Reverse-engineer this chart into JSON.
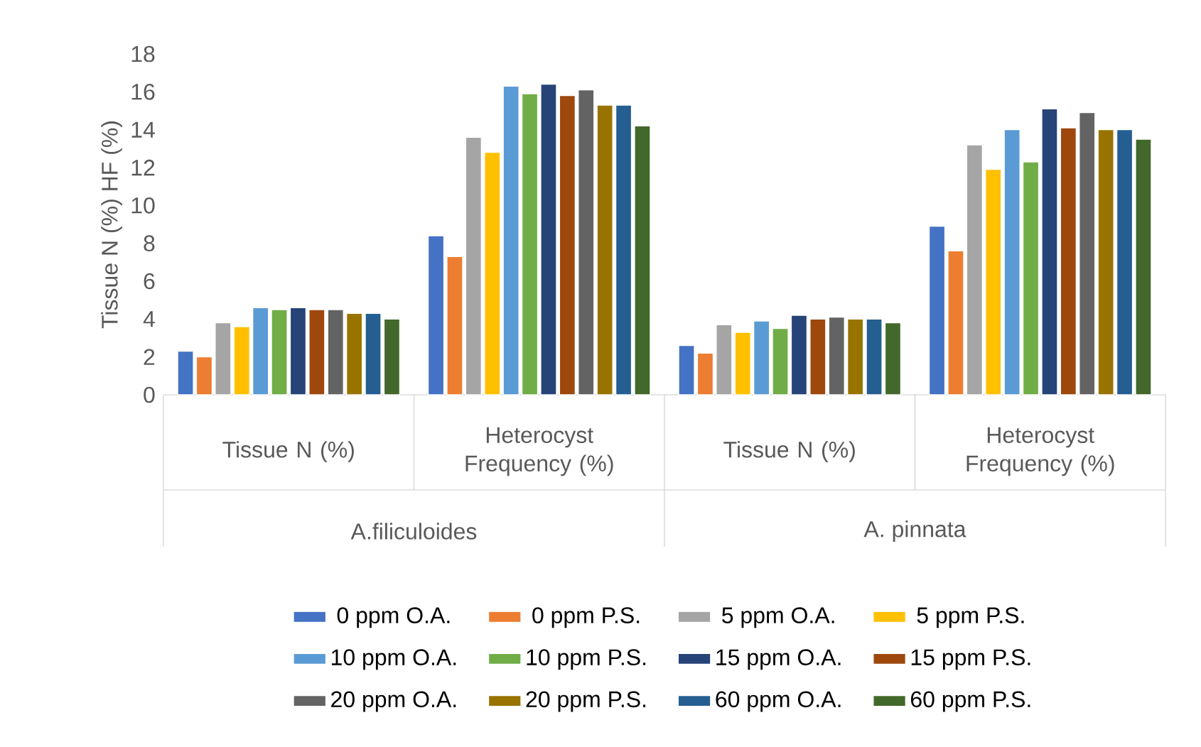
{
  "chart_data": {
    "type": "bar",
    "ylabel": "Tissue N (%) HF (%)",
    "categories": [
      "Tissue N (%)",
      "Heterocyst Frequency (%)",
      "Tissue N (%)",
      "Heterocyst Frequency (%)"
    ],
    "annotations": [
      "A.filiculoides",
      "A. pinnata"
    ],
    "ylim": [
      0,
      18
    ],
    "yticks": [
      0,
      2,
      4,
      6,
      8,
      10,
      12,
      14,
      16,
      18
    ],
    "grid": false,
    "legend": "bottom",
    "series": [
      {
        "name": "0 ppm O.A.",
        "color": "#4472c4",
        "values": [
          2.3,
          8.4,
          2.6,
          8.9
        ]
      },
      {
        "name": "0 ppm P.S.",
        "color": "#ed7d31",
        "values": [
          2.0,
          7.3,
          2.2,
          7.6
        ]
      },
      {
        "name": "5 ppm O.A.",
        "color": "#a5a5a5",
        "values": [
          3.8,
          13.6,
          3.7,
          13.2
        ]
      },
      {
        "name": "5 ppm P.S.",
        "color": "#ffc000",
        "values": [
          3.6,
          12.8,
          3.3,
          11.9
        ]
      },
      {
        "name": "10 ppm O.A.",
        "color": "#5b9bd5",
        "values": [
          4.6,
          16.3,
          3.9,
          14.0
        ]
      },
      {
        "name": "10 ppm P.S.",
        "color": "#70ad47",
        "values": [
          4.5,
          15.9,
          3.5,
          12.3
        ]
      },
      {
        "name": "15 ppm O.A.",
        "color": "#264478",
        "values": [
          4.6,
          16.4,
          4.2,
          15.1
        ]
      },
      {
        "name": "15 ppm P.S.",
        "color": "#9e480e",
        "values": [
          4.5,
          15.8,
          4.0,
          14.1
        ]
      },
      {
        "name": "20 ppm O.A.",
        "color": "#636363",
        "values": [
          4.5,
          16.1,
          4.1,
          14.9
        ]
      },
      {
        "name": "20 ppm P.S.",
        "color": "#997300",
        "values": [
          4.3,
          15.3,
          4.0,
          14.0
        ]
      },
      {
        "name": "60 ppm O.A.",
        "color": "#255e91",
        "values": [
          4.3,
          15.3,
          4.0,
          14.0
        ]
      },
      {
        "name": "60 ppm P.S.",
        "color": "#43682b",
        "values": [
          4.0,
          14.2,
          3.8,
          13.5
        ]
      }
    ]
  }
}
